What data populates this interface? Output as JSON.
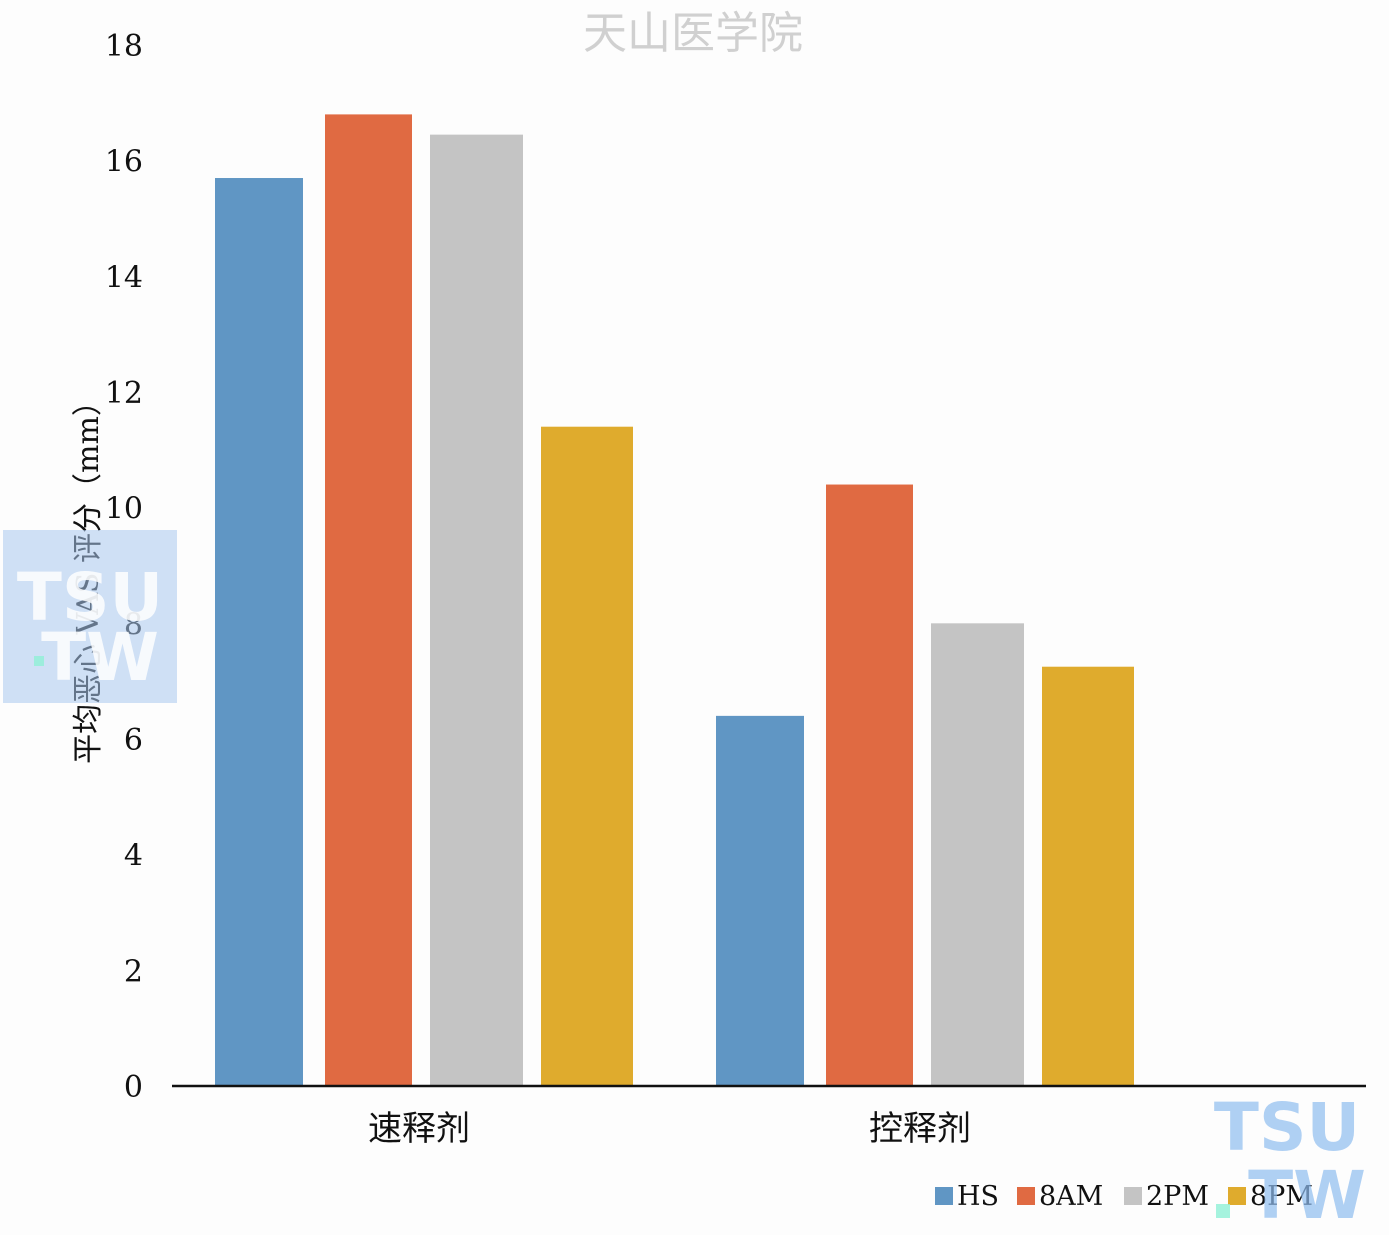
{
  "watermark": {
    "top_text": "天山医学院",
    "logo_line1": "TSU",
    "logo_line2": "TW"
  },
  "chart_data": {
    "type": "bar",
    "title": "",
    "xlabel": "",
    "ylabel": "平均恶心 VAS 评分（mm）",
    "ylim": [
      0,
      18
    ],
    "yticks": [
      0,
      2,
      4,
      6,
      8,
      10,
      12,
      14,
      16,
      18
    ],
    "categories": [
      "速释剂",
      "控释剂"
    ],
    "series": [
      {
        "name": "HS",
        "color": "#6096c4",
        "values": [
          15.7,
          6.4
        ]
      },
      {
        "name": "8AM",
        "color": "#e06a42",
        "values": [
          16.8,
          10.4
        ]
      },
      {
        "name": "2PM",
        "color": "#c4c4c4",
        "values": [
          16.45,
          8.0
        ]
      },
      {
        "name": "8PM",
        "color": "#dfab2d",
        "values": [
          11.4,
          7.25
        ]
      }
    ],
    "legend_position": "bottom-right",
    "grid": false
  }
}
